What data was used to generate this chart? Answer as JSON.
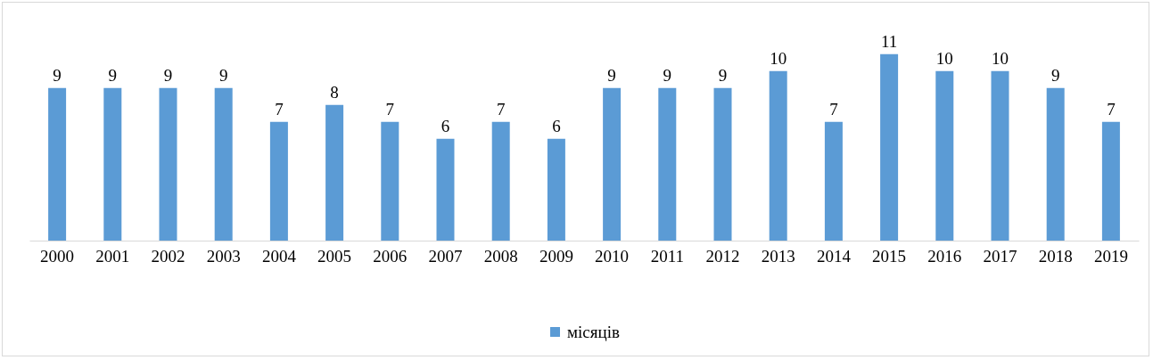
{
  "chart_data": {
    "type": "bar",
    "categories": [
      "2000",
      "2001",
      "2002",
      "2003",
      "2004",
      "2005",
      "2006",
      "2007",
      "2008",
      "2009",
      "2010",
      "2011",
      "2012",
      "2013",
      "2014",
      "2015",
      "2016",
      "2017",
      "2018",
      "2019"
    ],
    "series": [
      {
        "name": "місяців",
        "color": "#5b9bd5",
        "values": [
          9,
          9,
          9,
          9,
          7,
          8,
          7,
          6,
          7,
          6,
          9,
          9,
          9,
          10,
          7,
          11,
          10,
          10,
          9,
          7
        ]
      }
    ],
    "data_labels": true,
    "legend": "bottom",
    "tick_labels": "x"
  }
}
